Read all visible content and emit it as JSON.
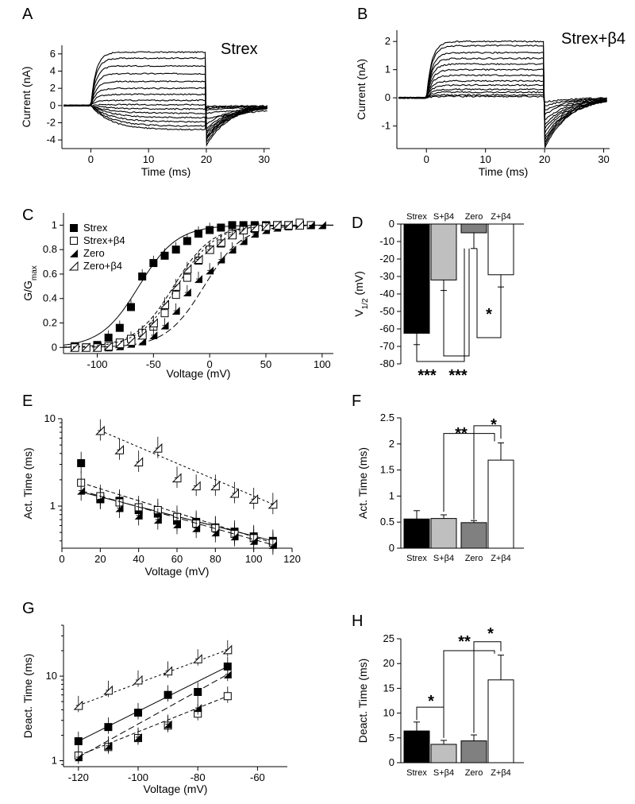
{
  "panels": {
    "A": {
      "letter": "A",
      "title": "Strex",
      "xlabel": "Time (ms)",
      "ylabel": "Current (nA)",
      "xticks": [
        "0",
        "10",
        "20",
        "30"
      ],
      "yticks": [
        "6",
        "4",
        "2",
        "0",
        "-2",
        "-4"
      ]
    },
    "B": {
      "letter": "B",
      "title": "Strex+β4",
      "xlabel": "Time (ms)",
      "ylabel": "Current (nA)",
      "xticks": [
        "0",
        "10",
        "20",
        "30"
      ],
      "yticks": [
        "2",
        "1",
        "0",
        "-1"
      ]
    },
    "C": {
      "letter": "C",
      "xlabel": "Voltage (mV)",
      "ylabel": "G/G",
      "ylabel_sub": "max",
      "xticks": [
        "-100",
        "-50",
        "0",
        "50",
        "100"
      ],
      "yticks": [
        "1",
        "0.8",
        "0.6",
        "0.4",
        "0.2",
        "0"
      ]
    },
    "D": {
      "letter": "D",
      "ylabel": "V",
      "ylabel_sub": "1/2",
      "ylabel_unit": " (mV)",
      "yticks": [
        "0",
        "-10",
        "-20",
        "-30",
        "-40",
        "-50",
        "-60",
        "-70",
        "-80"
      ],
      "sig1": "***",
      "sig2": "***",
      "sig3": "*"
    },
    "E": {
      "letter": "E",
      "xlabel": "Voltage (mV)",
      "ylabel": "Act. Time (ms)",
      "xticks": [
        "0",
        "20",
        "40",
        "60",
        "80",
        "100",
        "120"
      ],
      "yticks": [
        "10",
        "1"
      ]
    },
    "F": {
      "letter": "F",
      "ylabel": "Act. Time (ms)",
      "yticks": [
        "2.5",
        "2",
        "1.5",
        "1",
        "0.5",
        "0"
      ],
      "sig1": "**",
      "sig2": "*"
    },
    "G": {
      "letter": "G",
      "xlabel": "Voltage (mV)",
      "ylabel": "Deact. Time (ms)",
      "xticks": [
        "-120",
        "-100",
        "-80",
        "-60"
      ],
      "yticks": [
        "10",
        "1"
      ]
    },
    "H": {
      "letter": "H",
      "ylabel": "Deact. Time (ms)",
      "yticks": [
        "25",
        "20",
        "15",
        "10",
        "5",
        "0"
      ],
      "sig1": "*",
      "sig2": "**",
      "sig3": "*"
    }
  },
  "bar_labels": [
    "Strex",
    "S+β4",
    "Zero",
    "Z+β4"
  ],
  "legend": [
    "Strex",
    "Strex+β4",
    "Zero",
    "Zero+β4"
  ],
  "colors": {
    "strex": "#000000",
    "strex_b4": "#bfbfbf",
    "zero": "#808080",
    "zero_b4": "#ffffff"
  },
  "chart_data": [
    {
      "type": "line",
      "panel": "A",
      "title": "Strex",
      "xlabel": "Time (ms)",
      "ylabel": "Current (nA)",
      "xlim": [
        -5,
        31
      ],
      "ylim": [
        -5,
        7
      ],
      "step_end_ms": 20,
      "steady_currents_nA": [
        6.2,
        5.5,
        4.6,
        3.7,
        2.8,
        2.0,
        1.3,
        0.6,
        0.1,
        -0.4,
        -0.9,
        -1.4,
        -1.9,
        -2.4,
        -2.8
      ],
      "tail_currents_nA": [
        -4.6,
        -4.3,
        -4.0,
        -3.8,
        -3.6,
        -3.3,
        -3.0,
        -2.7,
        -2.2,
        -1.5,
        -0.9,
        -0.5,
        -0.3,
        -0.2,
        -0.1
      ]
    },
    {
      "type": "line",
      "panel": "B",
      "title": "Strex+β4",
      "xlabel": "Time (ms)",
      "ylabel": "Current (nA)",
      "xlim": [
        -5,
        31
      ],
      "ylim": [
        -1.8,
        2.4
      ],
      "step_end_ms": 20,
      "steady_currents_nA": [
        2.0,
        1.85,
        1.6,
        1.4,
        1.2,
        1.0,
        0.8,
        0.6,
        0.45,
        0.3,
        0.2,
        0.1,
        0.05
      ],
      "tail_currents_nA": [
        -1.8,
        -1.7,
        -1.6,
        -1.5,
        -1.4,
        -1.25,
        -1.1,
        -0.95,
        -0.8,
        -0.6,
        -0.45,
        -0.3,
        -0.15
      ]
    },
    {
      "type": "scatter",
      "panel": "C",
      "xlabel": "Voltage (mV)",
      "ylabel": "G/Gmax",
      "xlim": [
        -130,
        110
      ],
      "ylim": [
        -0.05,
        1.1
      ],
      "series": [
        {
          "name": "Strex",
          "x": [
            -120,
            -110,
            -100,
            -90,
            -80,
            -70,
            -60,
            -50,
            -40,
            -30,
            -20,
            -10,
            0,
            10,
            20,
            30,
            40,
            50,
            60,
            70,
            80
          ],
          "y": [
            0.01,
            0.0,
            0.02,
            0.08,
            0.16,
            0.33,
            0.58,
            0.69,
            0.75,
            0.8,
            0.87,
            0.93,
            0.96,
            0.98,
            1.0,
            1.0,
            1.0,
            1.0,
            1.0,
            1.0,
            1.0
          ],
          "v_half": -63
        },
        {
          "name": "Strex+β4",
          "x": [
            -120,
            -110,
            -100,
            -90,
            -80,
            -70,
            -60,
            -50,
            -40,
            -30,
            -20,
            -10,
            0,
            10,
            20,
            30,
            40,
            50,
            60,
            70,
            80,
            90
          ],
          "y": [
            0.0,
            0.0,
            0.0,
            0.01,
            0.04,
            0.07,
            0.12,
            0.17,
            0.28,
            0.43,
            0.57,
            0.71,
            0.8,
            0.85,
            0.93,
            0.96,
            0.97,
            0.99,
            1.0,
            1.0,
            1.02,
            1.0
          ],
          "v_half": -32
        },
        {
          "name": "Zero",
          "x": [
            -120,
            -110,
            -100,
            -90,
            -80,
            -70,
            -60,
            -50,
            -40,
            -30,
            -20,
            -10,
            0,
            10,
            20,
            30,
            40,
            50,
            60,
            70,
            80,
            90,
            100
          ],
          "y": [
            0.0,
            0.0,
            0.0,
            0.0,
            0.01,
            0.03,
            0.05,
            0.1,
            0.18,
            0.3,
            0.45,
            0.56,
            0.63,
            0.72,
            0.8,
            0.87,
            0.93,
            0.96,
            0.98,
            0.99,
            1.0,
            1.0,
            1.0
          ],
          "v_half": -5
        },
        {
          "name": "Zero+β4",
          "x": [
            -120,
            -110,
            -100,
            -90,
            -80,
            -70,
            -60,
            -50,
            -40,
            -30,
            -20,
            -10,
            0,
            10,
            20,
            30,
            40,
            50,
            60,
            70,
            80
          ],
          "y": [
            0.0,
            0.0,
            0.0,
            0.01,
            0.03,
            0.05,
            0.1,
            0.2,
            0.35,
            0.5,
            0.64,
            0.72,
            0.8,
            0.86,
            0.92,
            0.96,
            0.98,
            0.99,
            1.0,
            1.0,
            1.0
          ],
          "v_half": -29
        }
      ]
    },
    {
      "type": "bar",
      "panel": "D",
      "ylabel": "V1/2 (mV)",
      "ylim": [
        -80,
        0
      ],
      "categories": [
        "Strex",
        "S+β4",
        "Zero",
        "Z+β4"
      ],
      "values": [
        -62.5,
        -32,
        -5,
        -29
      ],
      "errors": [
        6.5,
        6,
        9,
        7
      ],
      "significance": [
        [
          "Strex",
          "Zero",
          "***"
        ],
        [
          "S+β4",
          "Zero",
          "***"
        ],
        [
          "Zero",
          "Z+β4",
          "*"
        ]
      ]
    },
    {
      "type": "scatter",
      "panel": "E",
      "xlabel": "Voltage (mV)",
      "ylabel": "Act. Time (ms)",
      "xlim": [
        0,
        120
      ],
      "ylim": [
        0.33,
        10
      ],
      "yscale": "log",
      "series": [
        {
          "name": "Strex",
          "x": [
            10,
            20,
            30,
            40,
            50,
            60,
            70,
            80,
            90,
            100,
            110
          ],
          "y": [
            3.1,
            1.2,
            1.15,
            0.9,
            0.82,
            0.68,
            0.66,
            0.57,
            0.51,
            0.45,
            0.4
          ]
        },
        {
          "name": "Strex+β4",
          "x": [
            10,
            20,
            30,
            40,
            50,
            60,
            70,
            80,
            90,
            100,
            110
          ],
          "y": [
            1.85,
            1.3,
            1.1,
            0.97,
            0.9,
            0.75,
            0.63,
            0.56,
            0.48,
            0.43,
            0.38
          ]
        },
        {
          "name": "Zero",
          "x": [
            10,
            20,
            30,
            40,
            50,
            60,
            70,
            80,
            90,
            100,
            110
          ],
          "y": [
            1.5,
            1.2,
            0.95,
            0.78,
            0.7,
            0.62,
            0.56,
            0.5,
            0.45,
            0.4,
            0.36
          ]
        },
        {
          "name": "Zero+β4",
          "x": [
            20,
            30,
            40,
            50,
            60,
            70,
            80,
            90,
            100,
            110
          ],
          "y": [
            7.3,
            4.4,
            3.2,
            4.6,
            2.1,
            1.7,
            1.7,
            1.4,
            1.2,
            1.05
          ]
        }
      ]
    },
    {
      "type": "bar",
      "panel": "F",
      "ylabel": "Act. Time (ms)",
      "ylim": [
        0,
        2.5
      ],
      "categories": [
        "Strex",
        "S+β4",
        "Zero",
        "Z+β4"
      ],
      "values": [
        0.56,
        0.57,
        0.49,
        1.69
      ],
      "errors": [
        0.16,
        0.07,
        0.04,
        0.33
      ],
      "significance": [
        [
          "S+β4",
          "Z+β4",
          "**"
        ],
        [
          "Zero",
          "Z+β4",
          "*"
        ]
      ]
    },
    {
      "type": "scatter",
      "panel": "G",
      "xlabel": "Voltage (mV)",
      "ylabel": "Deact. Time (ms)",
      "xlim": [
        -125,
        -50
      ],
      "ylim": [
        0.85,
        40
      ],
      "yscale": "log",
      "series": [
        {
          "name": "Strex",
          "x": [
            -120,
            -110,
            -100,
            -90,
            -80,
            -70
          ],
          "y": [
            1.7,
            2.5,
            3.7,
            6.0,
            6.5,
            13.0
          ]
        },
        {
          "name": "Strex+β4",
          "x": [
            -120,
            -110,
            -100,
            -90,
            -80,
            -70
          ],
          "y": [
            1.15,
            1.45,
            1.85,
            2.6,
            3.6,
            5.8
          ]
        },
        {
          "name": "Zero",
          "x": [
            -120,
            -110,
            -100,
            -90,
            -80,
            -70
          ],
          "y": [
            1.1,
            1.5,
            1.9,
            2.7,
            4.2,
            10.5
          ]
        },
        {
          "name": "Zero+β4",
          "x": [
            -120,
            -110,
            -100,
            -90,
            -80,
            -70
          ],
          "y": [
            4.5,
            6.8,
            9.0,
            11.5,
            16.0,
            20.5
          ]
        }
      ]
    },
    {
      "type": "bar",
      "panel": "H",
      "ylabel": "Deact. Time (ms)",
      "ylim": [
        0,
        25
      ],
      "categories": [
        "Strex",
        "S+β4",
        "Zero",
        "Z+β4"
      ],
      "values": [
        6.4,
        3.7,
        4.4,
        16.7
      ],
      "errors": [
        1.8,
        0.8,
        1.2,
        5.0
      ],
      "significance": [
        [
          "Strex",
          "S+β4",
          "*"
        ],
        [
          "S+β4",
          "Zero",
          "**"
        ],
        [
          "Zero",
          "Z+β4",
          "*"
        ]
      ]
    }
  ]
}
